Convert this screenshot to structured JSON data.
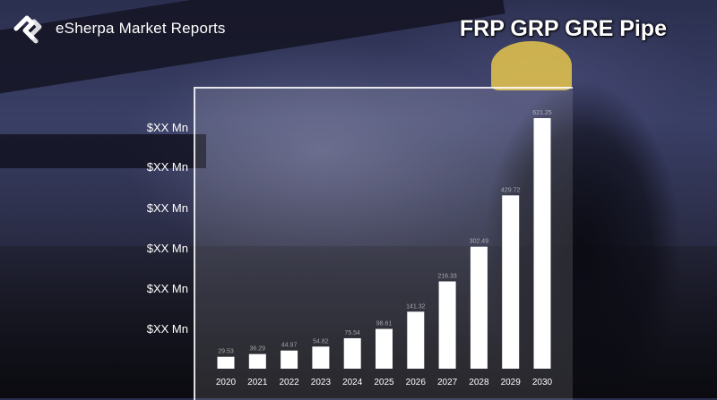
{
  "brand": {
    "name": "eSherpa Market Reports",
    "logo_icon": "esherpa-logo-icon"
  },
  "report_title": "FRP GRP GRE Pipe",
  "chart_data": {
    "type": "bar",
    "title": "",
    "xlabel": "",
    "ylabel": "",
    "categories": [
      "2020",
      "2021",
      "2022",
      "2023",
      "2024",
      "2025",
      "2026",
      "2027",
      "2028",
      "2029",
      "2030"
    ],
    "values": [
      29.53,
      36.29,
      44.97,
      54.82,
      75.54,
      98.61,
      141.32,
      216.33,
      302.49,
      429.72,
      621.25
    ],
    "value_labels": [
      "29.53",
      "36.29",
      "44.97",
      "54.82",
      "75.54",
      "98.61",
      "141.32",
      "216.33",
      "302.49",
      "429.72",
      "621.25"
    ],
    "ytick_labels": [
      "$XX Mn",
      "$XX Mn",
      "$XX Mn",
      "$XX Mn",
      "$XX Mn",
      "$XX Mn"
    ],
    "ylim": [
      0,
      640
    ],
    "bar_color": "#ffffff",
    "legend": "none",
    "grid": false
  }
}
